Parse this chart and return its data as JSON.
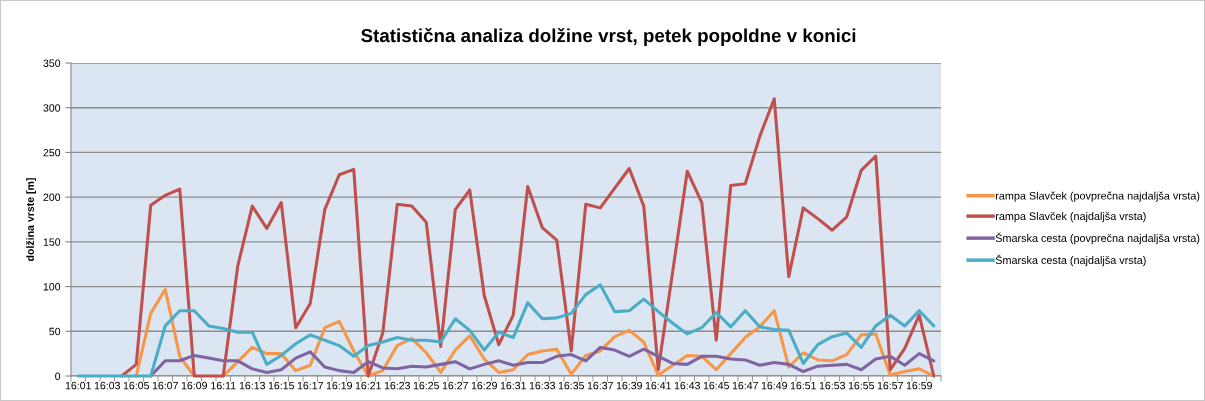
{
  "chart_data": {
    "type": "line",
    "title": "Statistična analiza dolžine vrst, petek popoldne v konici",
    "ylabel": "dolžina vrste [m]",
    "categories": [
      "16:01",
      null,
      "16:03",
      null,
      "16:05",
      null,
      "16:07",
      null,
      "16:09",
      null,
      "16:11",
      null,
      "16:13",
      null,
      "16:15",
      null,
      "16:17",
      null,
      "16:19",
      null,
      "16:21",
      null,
      "16:23",
      null,
      "16:25",
      null,
      "16:27",
      null,
      "16:29",
      null,
      "16:31",
      null,
      "16:33",
      null,
      "16:35",
      null,
      "16:37",
      null,
      "16:39",
      null,
      "16:41",
      null,
      "16:43",
      null,
      "16:45",
      null,
      "16:47",
      null,
      "16:49",
      null,
      "16:51",
      null,
      "16:53",
      null,
      "16:55",
      null,
      "16:57",
      null,
      "16:59",
      null
    ],
    "series": [
      {
        "name": "rampa Slavček (povprečna najdaljša vrsta)",
        "color": "#f79646",
        "values": [
          null,
          null,
          null,
          null,
          0,
          70,
          97,
          22,
          0,
          null,
          0,
          16,
          32,
          25,
          25,
          6,
          12,
          54,
          61,
          28,
          0,
          6,
          34,
          42,
          26,
          4,
          29,
          45,
          19,
          4,
          7,
          24,
          28,
          30,
          2,
          23,
          28,
          44,
          51,
          38,
          1,
          12,
          23,
          22,
          7,
          25,
          43,
          55,
          73,
          10,
          26,
          18,
          17,
          24,
          46,
          47,
          1,
          5,
          8,
          0
        ]
      },
      {
        "name": "rampa Slavček (najdaljša vrsta)",
        "color": "#c0504d",
        "values": [
          null,
          null,
          null,
          0,
          13,
          191,
          202,
          209,
          0,
          0,
          0,
          123,
          190,
          165,
          194,
          54,
          81,
          186,
          225,
          231,
          0,
          48,
          192,
          190,
          172,
          33,
          186,
          208,
          90,
          35,
          68,
          212,
          166,
          152,
          28,
          192,
          188,
          210,
          232,
          190,
          7,
          117,
          229,
          194,
          40,
          213,
          215,
          268,
          310,
          111,
          188,
          176,
          163,
          178,
          230,
          246,
          7,
          31,
          68,
          0
        ]
      },
      {
        "name": "Šmarska cesta (povprečna najdaljša vrsta)",
        "color": "#8064a2",
        "values": [
          null,
          null,
          null,
          null,
          null,
          0,
          17,
          17,
          23,
          20,
          17,
          17,
          8,
          4,
          7,
          20,
          27,
          10,
          6,
          4,
          16,
          9,
          8,
          11,
          10,
          13,
          16,
          8,
          13,
          17,
          12,
          15,
          15,
          22,
          24,
          17,
          32,
          29,
          22,
          30,
          22,
          14,
          13,
          22,
          22,
          19,
          18,
          12,
          15,
          13,
          5,
          11,
          12,
          13,
          7,
          19,
          22,
          12,
          25,
          17
        ]
      },
      {
        "name": "Šmarska cesta (najdaljša vrsta)",
        "color": "#4bacc6",
        "values": [
          0,
          0,
          0,
          0,
          0,
          0,
          56,
          73,
          73,
          56,
          53,
          49,
          49,
          13,
          23,
          36,
          46,
          40,
          34,
          22,
          34,
          38,
          43,
          40,
          40,
          38,
          64,
          51,
          29,
          49,
          43,
          82,
          64,
          65,
          70,
          91,
          102,
          72,
          73,
          86,
          72,
          59,
          47,
          54,
          71,
          55,
          73,
          55,
          52,
          51,
          14,
          35,
          44,
          48,
          32,
          56,
          68,
          56,
          73,
          56
        ]
      }
    ],
    "ylim": [
      0,
      350
    ],
    "yticks": [
      0,
      50,
      100,
      150,
      200,
      250,
      300,
      350
    ],
    "grid": "y",
    "legend": "right",
    "marker": "none",
    "line_style": "solid"
  }
}
